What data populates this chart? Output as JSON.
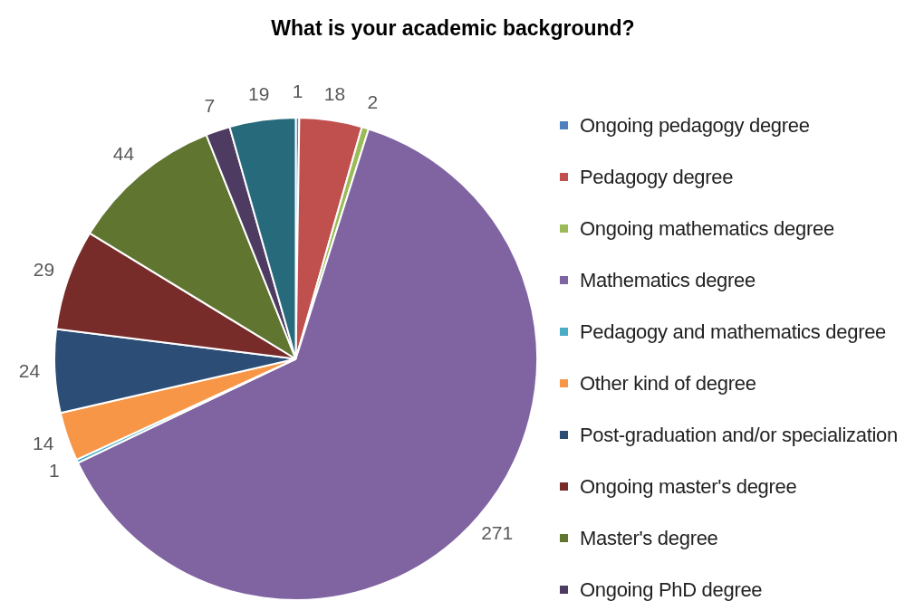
{
  "chart_data": {
    "type": "pie",
    "title": "What is your academic background?",
    "categories": [
      "Ongoing pedagogy degree",
      "Pedagogy degree",
      "Ongoing mathematics degree",
      "Mathematics degree",
      "Pedagogy and mathematics degree",
      "Other kind of degree",
      "Post-graduation and/or specialization",
      "Ongoing master's degree",
      "Master's degree",
      "Ongoing PhD degree",
      null
    ],
    "values": [
      1,
      18,
      2,
      271,
      1,
      14,
      24,
      29,
      44,
      7,
      19
    ],
    "colors": [
      "#4f81bd",
      "#c0504d",
      "#9bbb59",
      "#8064a2",
      "#4bacc6",
      "#f79646",
      "#2c4d75",
      "#772c2a",
      "#5f7530",
      "#4d3b62",
      "#276a7c"
    ],
    "data_labels": true,
    "legend": "right"
  }
}
